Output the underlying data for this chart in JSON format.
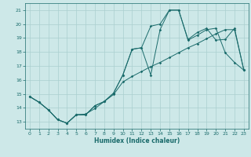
{
  "xlabel": "Humidex (Indice chaleur)",
  "bg_color": "#cde8e8",
  "grid_color": "#aacfcf",
  "line_color": "#1a6b6b",
  "xlim": [
    -0.5,
    23.5
  ],
  "ylim": [
    12.5,
    21.5
  ],
  "xticks": [
    0,
    1,
    2,
    3,
    4,
    5,
    6,
    7,
    8,
    9,
    10,
    11,
    12,
    13,
    14,
    15,
    16,
    17,
    18,
    19,
    20,
    21,
    22,
    23
  ],
  "yticks": [
    13,
    14,
    15,
    16,
    17,
    18,
    19,
    20,
    21
  ],
  "line1_x": [
    0,
    1,
    2,
    3,
    4,
    5,
    6,
    7,
    8,
    9,
    10,
    11,
    12,
    13,
    14,
    15,
    16,
    17,
    18,
    19,
    20,
    21,
    22,
    23
  ],
  "line1_y": [
    14.8,
    14.4,
    13.85,
    13.15,
    12.9,
    13.5,
    13.5,
    14.15,
    14.45,
    15.05,
    16.35,
    18.2,
    18.3,
    16.35,
    19.6,
    21.0,
    21.0,
    18.85,
    19.2,
    19.6,
    19.7,
    17.95,
    17.25,
    16.7
  ],
  "line2_x": [
    0,
    1,
    2,
    3,
    4,
    5,
    6,
    7,
    8,
    9,
    10,
    11,
    12,
    13,
    14,
    15,
    16,
    17,
    18,
    19,
    20,
    21,
    22,
    23
  ],
  "line2_y": [
    14.8,
    14.4,
    13.85,
    13.15,
    12.9,
    13.5,
    13.5,
    14.15,
    14.45,
    15.05,
    16.35,
    18.2,
    18.3,
    19.85,
    20.0,
    21.0,
    21.0,
    18.9,
    19.4,
    19.7,
    18.85,
    18.9,
    19.7,
    16.7
  ],
  "line3_x": [
    0,
    1,
    2,
    3,
    4,
    5,
    6,
    7,
    8,
    9,
    10,
    11,
    12,
    13,
    14,
    15,
    16,
    17,
    18,
    19,
    20,
    21,
    22,
    23
  ],
  "line3_y": [
    14.8,
    14.4,
    13.85,
    13.15,
    12.9,
    13.5,
    13.55,
    13.95,
    14.45,
    14.95,
    15.85,
    16.25,
    16.6,
    16.95,
    17.25,
    17.6,
    17.95,
    18.3,
    18.6,
    18.95,
    19.3,
    19.6,
    19.6,
    16.7
  ]
}
